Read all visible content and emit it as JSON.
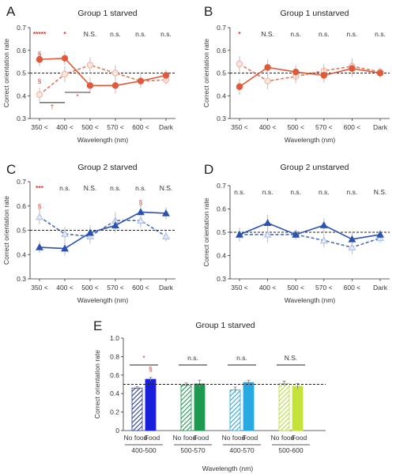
{
  "colors": {
    "orange": "#e05a3a",
    "orange_light": "#f4b6a6",
    "blue": "#2a52b2",
    "blue_light": "#aebfe8",
    "sig_red": "#e0362a",
    "axis": "#333333"
  },
  "chart_data": [
    {
      "id": "A",
      "type": "line",
      "letter": "A",
      "title": "Group 1 starved",
      "xlabel": "Wavelength (nm)",
      "ylabel": "Correct orientation rate",
      "ylim": [
        0.3,
        0.7
      ],
      "yticks": [
        "0.3",
        "0.4",
        "0.5",
        "0.6",
        "0.7"
      ],
      "categories": [
        "350 <",
        "400 <",
        "500 <",
        "570 <",
        "600 <",
        "Dark"
      ],
      "reference_line": 0.5,
      "color": "#e05a3a",
      "light_color": "#f4b6a6",
      "marker": "circle",
      "series": [
        {
          "style": "solid",
          "fill": "filled",
          "values": [
            0.56,
            0.565,
            0.445,
            0.445,
            0.465,
            0.49
          ],
          "err": [
            0.03,
            0.03,
            0.035,
            0.035,
            0.03,
            0.025
          ]
        },
        {
          "style": "dashed",
          "fill": "open",
          "values": [
            0.405,
            0.495,
            0.535,
            0.5,
            0.465,
            0.47
          ],
          "err": [
            0.03,
            0.035,
            0.035,
            0.035,
            0.03,
            0.02
          ]
        }
      ],
      "significance": [
        {
          "label": "*****",
          "color": "red"
        },
        {
          "label": "*",
          "color": "red"
        },
        {
          "label": "N.S."
        },
        {
          "label": "n.s."
        },
        {
          "label": "n.s."
        },
        {
          "label": "n.s."
        }
      ],
      "extra_marks": [
        {
          "label": "§",
          "cat": 0,
          "y": 0.585,
          "color": "red"
        },
        {
          "label": "§",
          "cat": 0,
          "y": 0.465,
          "color": "red"
        },
        {
          "label": "†",
          "cat": 0.5,
          "y": 0.352,
          "color": "red"
        },
        {
          "label": "*",
          "cat": 1.5,
          "y": 0.397,
          "color": "red"
        }
      ],
      "brackets": [
        {
          "from": 0,
          "to": 1,
          "y": 0.37
        },
        {
          "from": 1,
          "to": 2,
          "y": 0.415
        }
      ]
    },
    {
      "id": "B",
      "type": "line",
      "letter": "B",
      "title": "Group 1 unstarved",
      "xlabel": "Wavelength (nm)",
      "ylabel": "Correct orientation rate",
      "ylim": [
        0.3,
        0.7
      ],
      "yticks": [
        "0.3",
        "0.4",
        "0.5",
        "0.6",
        "0.7"
      ],
      "categories": [
        "350 <",
        "400 <",
        "500 <",
        "570 <",
        "600 <",
        "Dark"
      ],
      "reference_line": 0.5,
      "color": "#e05a3a",
      "light_color": "#f4b6a6",
      "marker": "circle",
      "series": [
        {
          "style": "solid",
          "fill": "filled",
          "values": [
            0.44,
            0.525,
            0.505,
            0.49,
            0.52,
            0.5
          ],
          "err": [
            0.035,
            0.035,
            0.03,
            0.03,
            0.035,
            0.02
          ]
        },
        {
          "style": "dashed",
          "fill": "open",
          "values": [
            0.54,
            0.465,
            0.485,
            0.51,
            0.53,
            0.505
          ],
          "err": [
            0.035,
            0.035,
            0.03,
            0.03,
            0.035,
            0.02
          ]
        }
      ],
      "significance": [
        {
          "label": "*",
          "color": "red"
        },
        {
          "label": "N.S."
        },
        {
          "label": "n.s."
        },
        {
          "label": "n.s."
        },
        {
          "label": "n.s."
        },
        {
          "label": "n.s."
        }
      ],
      "extra_marks": [],
      "brackets": []
    },
    {
      "id": "C",
      "type": "line",
      "letter": "C",
      "title": "Group 2 starved",
      "xlabel": "Wavelength (nm)",
      "ylabel": "Correct orientation rate",
      "ylim": [
        0.3,
        0.7
      ],
      "yticks": [
        "0.3",
        "0.4",
        "0.5",
        "0.6",
        "0.7"
      ],
      "categories": [
        "350 <",
        "400 <",
        "500 <",
        "570 <",
        "600 <",
        "Dark"
      ],
      "reference_line": 0.5,
      "color": "#2a52b2",
      "light_color": "#aebfe8",
      "marker": "triangle",
      "series": [
        {
          "style": "solid",
          "fill": "filled",
          "values": [
            0.43,
            0.425,
            0.49,
            0.52,
            0.575,
            0.57
          ],
          "err": [
            0.025,
            0.03,
            0.03,
            0.03,
            0.03,
            0.025
          ]
        },
        {
          "style": "dashed",
          "fill": "open",
          "values": [
            0.555,
            0.485,
            0.475,
            0.54,
            0.54,
            0.475
          ],
          "err": [
            0.03,
            0.03,
            0.03,
            0.035,
            0.03,
            0.02
          ]
        }
      ],
      "significance": [
        {
          "label": "***",
          "color": "red"
        },
        {
          "label": "n.s."
        },
        {
          "label": "N.S."
        },
        {
          "label": "n.s."
        },
        {
          "label": "n.s."
        },
        {
          "label": "N.S."
        }
      ],
      "extra_marks": [
        {
          "label": "§",
          "cat": 0,
          "y": 0.6,
          "color": "red"
        },
        {
          "label": "§",
          "cat": 4,
          "y": 0.615,
          "color": "red"
        }
      ],
      "brackets": []
    },
    {
      "id": "D",
      "type": "line",
      "letter": "D",
      "title": "Group 2 unstarved",
      "xlabel": "Wavelength (nm)",
      "ylabel": "Correct orientation rate",
      "ylim": [
        0.3,
        0.7
      ],
      "yticks": [
        "0.3",
        "0.4",
        "0.5",
        "0.6",
        "0.7"
      ],
      "categories": [
        "350 <",
        "400 <",
        "500 <",
        "570 <",
        "600 <",
        "Dark"
      ],
      "reference_line": 0.5,
      "color": "#2a52b2",
      "light_color": "#aebfe8",
      "marker": "triangle",
      "series": [
        {
          "style": "solid",
          "fill": "filled",
          "values": [
            0.49,
            0.54,
            0.49,
            0.53,
            0.47,
            0.49
          ],
          "err": [
            0.03,
            0.035,
            0.02,
            0.03,
            0.03,
            0.02
          ]
        },
        {
          "style": "dashed",
          "fill": "open",
          "values": [
            0.49,
            0.49,
            0.49,
            0.465,
            0.435,
            0.475
          ],
          "err": [
            0.03,
            0.035,
            0.02,
            0.03,
            0.03,
            0.02
          ]
        }
      ],
      "significance": [
        {
          "label": "n.s."
        },
        {
          "label": "n.s."
        },
        {
          "label": "n.s."
        },
        {
          "label": "n.s."
        },
        {
          "label": "n.s."
        },
        {
          "label": "N.S."
        }
      ],
      "extra_marks": [],
      "brackets": []
    },
    {
      "id": "E",
      "type": "bar",
      "letter": "E",
      "title": "Group 1 starved",
      "xlabel": "Wavelength (nm)",
      "ylabel": "Correct orientation rate",
      "ylim": [
        0,
        1.0
      ],
      "yticks": [
        "0",
        "0.2",
        "0.4",
        "0.6",
        "0.8",
        "1.0"
      ],
      "reference_line": 0.5,
      "groups": [
        {
          "label": "400-500",
          "significance": "*",
          "sig_color": "red",
          "bars": [
            {
              "label": "No food",
              "value": 0.46,
              "err": 0.015,
              "color": "#2a3a9c",
              "pattern": "hatch"
            },
            {
              "label": "Food",
              "value": 0.555,
              "err": 0.02,
              "color": "#1a1fdc",
              "pattern": "solid"
            }
          ],
          "marks": [
            {
              "label": "§",
              "bar": 1,
              "y": 0.64,
              "color": "red"
            }
          ]
        },
        {
          "label": "500-570",
          "significance": "n.s.",
          "bars": [
            {
              "label": "No food",
              "value": 0.49,
              "err": 0.025,
              "color": "#1e9a50",
              "pattern": "hatch"
            },
            {
              "label": "Food",
              "value": 0.505,
              "err": 0.04,
              "color": "#1e9a50",
              "pattern": "solid"
            }
          ],
          "marks": []
        },
        {
          "label": "400-570",
          "significance": "n.s.",
          "bars": [
            {
              "label": "No food",
              "value": 0.44,
              "err": 0.03,
              "color": "#29a9e1",
              "pattern": "hatch"
            },
            {
              "label": "Food",
              "value": 0.52,
              "err": 0.025,
              "color": "#29a9e1",
              "pattern": "solid"
            }
          ],
          "marks": []
        },
        {
          "label": "500-600",
          "significance": "N.S.",
          "bars": [
            {
              "label": "No food",
              "value": 0.51,
              "err": 0.025,
              "color": "#b9dd3e",
              "pattern": "hatch"
            },
            {
              "label": "Food",
              "value": 0.48,
              "err": 0.03,
              "color": "#c4e23a",
              "pattern": "solid"
            }
          ],
          "marks": []
        }
      ]
    }
  ]
}
